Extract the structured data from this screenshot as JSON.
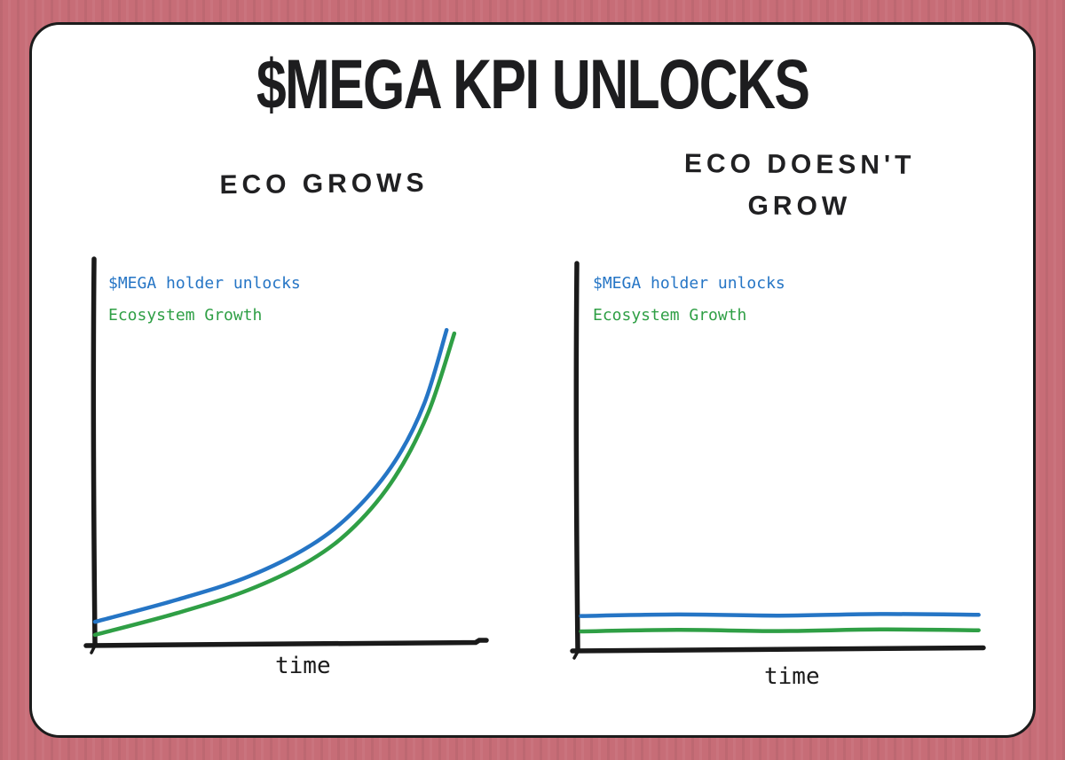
{
  "page": {
    "background_color": "#c76d77",
    "card_color": "#ffffff",
    "card_border_color": "#1c1c1c",
    "title_color": "#1d1d1f",
    "axis_color": "#1a1a1a"
  },
  "title": "$MEGA KPI UNLOCKS",
  "chart_data": [
    {
      "type": "line",
      "title": "ECO GROWS",
      "xlabel": "time",
      "ylabel": "",
      "axes": {
        "x_range": [
          0,
          1
        ],
        "y_range": [
          0,
          1
        ],
        "ticks": "none",
        "grid": false
      },
      "legend_position": "top-left-inside",
      "series": [
        {
          "name": "$MEGA holder unlocks",
          "color": "#2575c5",
          "x": [
            0,
            0.203,
            0.378,
            0.531,
            0.64,
            0.738,
            0.81,
            0.865
          ],
          "y": [
            0.055,
            0.113,
            0.173,
            0.254,
            0.346,
            0.473,
            0.623,
            0.815
          ]
        },
        {
          "name": "Ecosystem Growth",
          "color": "#2f9f45",
          "x": [
            0,
            0.203,
            0.378,
            0.531,
            0.64,
            0.738,
            0.82,
            0.884
          ],
          "y": [
            0.021,
            0.078,
            0.138,
            0.216,
            0.305,
            0.432,
            0.6,
            0.806
          ]
        }
      ]
    },
    {
      "type": "line",
      "title": "ECO DOESN'T GROW",
      "xlabel": "time",
      "ylabel": "",
      "axes": {
        "x_range": [
          0,
          1
        ],
        "y_range": [
          0,
          1
        ],
        "ticks": "none",
        "grid": false
      },
      "legend_position": "top-left-inside",
      "series": [
        {
          "name": "$MEGA holder unlocks",
          "color": "#2575c5",
          "x": [
            0.008,
            0.25,
            0.5,
            0.75,
            0.995
          ],
          "y": [
            0.086,
            0.09,
            0.087,
            0.091,
            0.089
          ]
        },
        {
          "name": "Ecosystem Growth",
          "color": "#2f9f45",
          "x": [
            0.008,
            0.25,
            0.5,
            0.75,
            0.995
          ],
          "y": [
            0.046,
            0.05,
            0.047,
            0.051,
            0.049
          ]
        }
      ]
    }
  ]
}
